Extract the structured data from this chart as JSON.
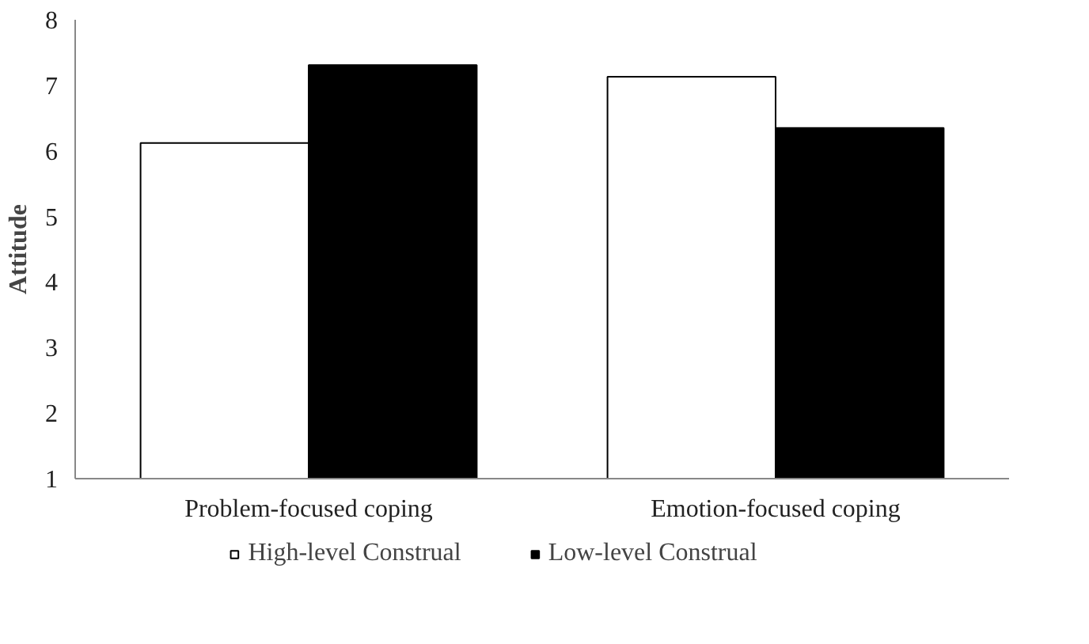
{
  "chart_data": {
    "type": "bar",
    "ylabel": "Attitude",
    "categories": [
      "Problem-focused coping",
      "Emotion-focused coping"
    ],
    "series": [
      {
        "name": "High-level Construal",
        "color": "#ffffff",
        "values": [
          6.12,
          7.13
        ]
      },
      {
        "name": "Low-level Construal",
        "color": "#000000",
        "values": [
          7.31,
          6.35
        ]
      }
    ],
    "ylim": [
      1,
      8
    ],
    "yticks": [
      1,
      2,
      3,
      4,
      5,
      6,
      7,
      8
    ],
    "grid": false,
    "legend": "bottom"
  }
}
